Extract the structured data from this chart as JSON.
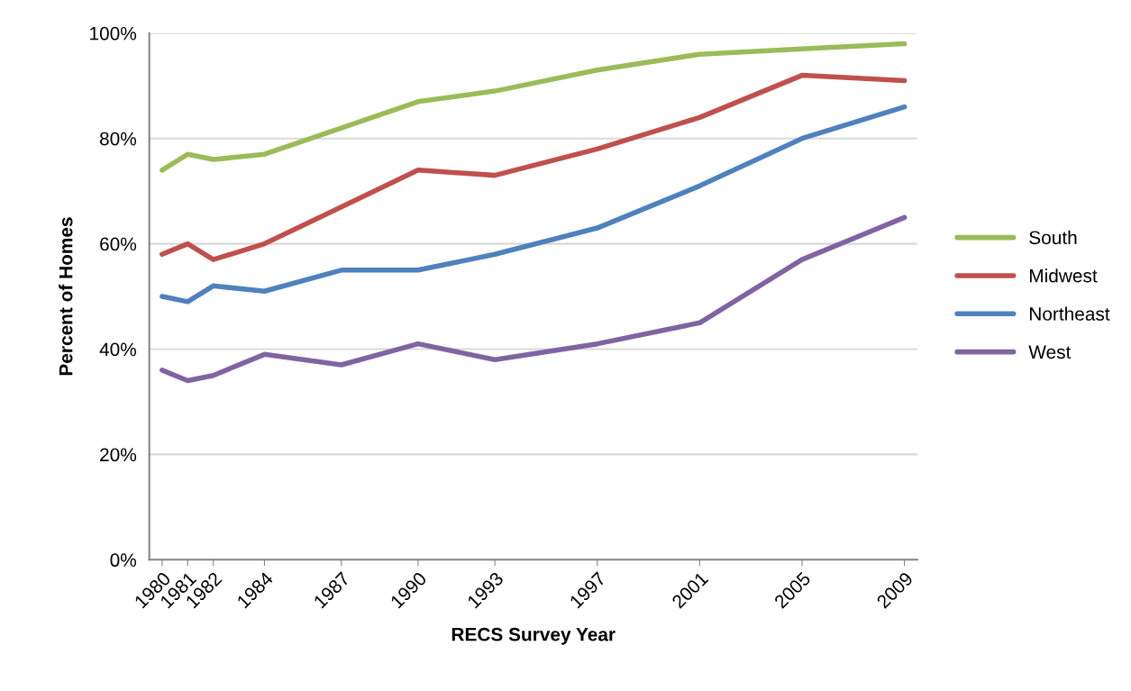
{
  "chart_data": {
    "type": "line",
    "xlabel": "RECS Survey Year",
    "ylabel": "Percent of Homes",
    "x": [
      1980,
      1981,
      1982,
      1984,
      1987,
      1990,
      1993,
      1997,
      2001,
      2005,
      2009
    ],
    "xlim": [
      1979.5,
      2009.5
    ],
    "xticks": [
      1980,
      1981,
      1982,
      1984,
      1987,
      1990,
      1993,
      1997,
      2001,
      2005,
      2009
    ],
    "ylim": [
      0,
      100
    ],
    "yticks": [
      {
        "value": 0,
        "label": "0%"
      },
      {
        "value": 20,
        "label": "20%"
      },
      {
        "value": 40,
        "label": "40%"
      },
      {
        "value": 60,
        "label": "60%"
      },
      {
        "value": 80,
        "label": "80%"
      },
      {
        "value": 100,
        "label": "100%"
      }
    ],
    "grid": "y",
    "legend": "right",
    "marker": "none",
    "line_style": "solid",
    "series": [
      {
        "name": "South",
        "color": "#9bbb59",
        "values": [
          74,
          77,
          76,
          77,
          82,
          87,
          89,
          93,
          96,
          97,
          98
        ]
      },
      {
        "name": "Midwest",
        "color": "#c0504d",
        "values": [
          58,
          60,
          57,
          60,
          67,
          74,
          73,
          78,
          84,
          92,
          91
        ]
      },
      {
        "name": "Northeast",
        "color": "#4f81bd",
        "values": [
          50,
          49,
          52,
          51,
          55,
          55,
          58,
          63,
          71,
          80,
          86
        ]
      },
      {
        "name": "West",
        "color": "#8064a2",
        "values": [
          36,
          34,
          35,
          39,
          37,
          41,
          38,
          41,
          45,
          57,
          65
        ]
      }
    ]
  }
}
